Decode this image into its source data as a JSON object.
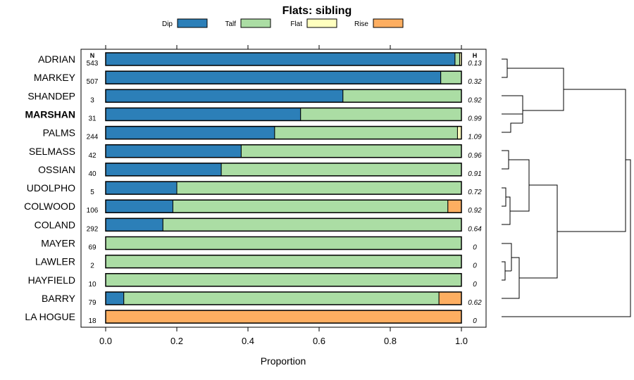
{
  "chart_data": {
    "type": "bar",
    "stacked": true,
    "orientation": "horizontal",
    "title": "Flats: sibling",
    "xlabel": "Proportion",
    "xlim": [
      0,
      1
    ],
    "x_ticks": [
      "0.0",
      "0.2",
      "0.4",
      "0.6",
      "0.8",
      "1.0"
    ],
    "n_header": "N",
    "h_header": "H",
    "highlighted_category": "MARSHAN",
    "categories": [
      "ADRIAN",
      "MARKEY",
      "SHANDEP",
      "MARSHAN",
      "PALMS",
      "SELMASS",
      "OSSIAN",
      "UDOLPHO",
      "COLWOOD",
      "COLAND",
      "MAYER",
      "LAWLER",
      "HAYFIELD",
      "BARRY",
      "LA HOGUE"
    ],
    "n": [
      "543",
      "507",
      "3",
      "31",
      "244",
      "42",
      "40",
      "5",
      "106",
      "292",
      "69",
      "2",
      "10",
      "79",
      "18"
    ],
    "h": [
      "0.13",
      "0.32",
      "0.92",
      "0.99",
      "1.09",
      "0.96",
      "0.91",
      "0.72",
      "0.92",
      "0.64",
      "0",
      "0",
      "0",
      "0.62",
      "0"
    ],
    "series": [
      {
        "name": "Dip",
        "color": "#2c7fb8",
        "values": [
          0.982,
          0.942,
          0.667,
          0.548,
          0.475,
          0.381,
          0.325,
          0.2,
          0.189,
          0.161,
          0,
          0,
          0,
          0.051,
          0
        ]
      },
      {
        "name": "Talf",
        "color": "#abdda4",
        "values": [
          0.013,
          0.058,
          0.333,
          0.452,
          0.514,
          0.619,
          0.675,
          0.8,
          0.773,
          0.839,
          1,
          1,
          1,
          0.886,
          0
        ]
      },
      {
        "name": "Flat",
        "color": "#ffffbf",
        "values": [
          0.005,
          0,
          0,
          0,
          0.011,
          0,
          0,
          0,
          0,
          0,
          0,
          0,
          0,
          0,
          0
        ]
      },
      {
        "name": "Rise",
        "color": "#fdae61",
        "values": [
          0,
          0,
          0,
          0,
          0,
          0,
          0,
          0,
          0.038,
          0,
          0,
          0,
          0,
          0.063,
          1
        ]
      }
    ]
  }
}
